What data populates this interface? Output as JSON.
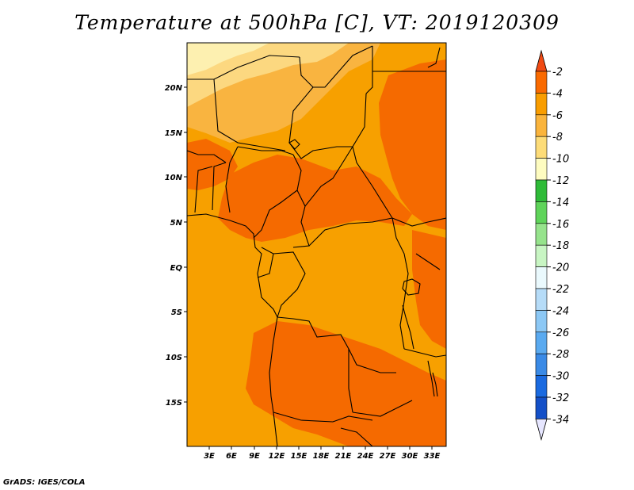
{
  "title": "Temperature at 500hPa [C], VT: 2019120309",
  "credit": "GrADS: IGES/COLA",
  "map": {
    "lat_labels": [
      "20N",
      "15N",
      "10N",
      "5N",
      "EQ",
      "5S",
      "10S",
      "15S"
    ],
    "lon_labels": [
      "3E",
      "6E",
      "9E",
      "12E",
      "15E",
      "18E",
      "21E",
      "24E",
      "27E",
      "30E",
      "33E"
    ]
  },
  "colorbar": {
    "labels": [
      "-2",
      "-4",
      "-6",
      "-8",
      "-10",
      "-12",
      "-14",
      "-16",
      "-18",
      "-20",
      "-22",
      "-24",
      "-26",
      "-28",
      "-30",
      "-32",
      "-34"
    ],
    "colors": [
      "#f04a14",
      "#fa6a00",
      "#f99d00",
      "#fab43c",
      "#fddc78",
      "#fefcc0",
      "#2fbb38",
      "#5fd45a",
      "#96e38c",
      "#c8f5c3",
      "#eaf9fd",
      "#b6dcf8",
      "#8cc8f5",
      "#5aaaf0",
      "#3a8ae6",
      "#1a6ae0",
      "#1450c8",
      "#0a10a0"
    ],
    "top_arrow_color": "#f04a14",
    "bottom_arrow_color": "#e6e6ff"
  },
  "field_colors": {
    "dark": "#f56a00",
    "mid": "#f7a000",
    "light": "#f9b440",
    "pale": "#fcd880",
    "palest": "#fdf0b0"
  }
}
